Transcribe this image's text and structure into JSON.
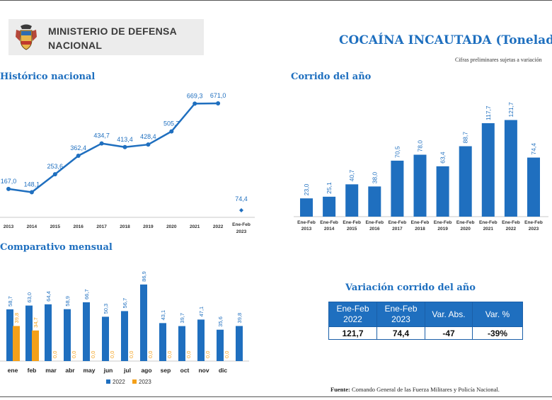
{
  "header": {
    "ministry_line1": "MINISTERIO DE DEFENSA",
    "ministry_line2": "NACIONAL",
    "title": "COCAÍNA INCAUTADA (Toneladas)",
    "subnote": "Cifras preliminares sujetas a variación"
  },
  "chart_data": [
    {
      "type": "line",
      "title": "Histórico nacional",
      "categories": [
        "2013",
        "2014",
        "2015",
        "2016",
        "2017",
        "2018",
        "2019",
        "2020",
        "2021",
        "2022"
      ],
      "values": [
        167.0,
        148.1,
        253.6,
        362.4,
        434.7,
        413.4,
        428.4,
        505.7,
        669.3,
        671.0
      ],
      "labels": [
        "167,0",
        "148,1",
        "253,6",
        "362,4",
        "434,7",
        "413,4",
        "428,4",
        "505,7",
        "669,3",
        "671,0"
      ],
      "extra_point": {
        "category": [
          "Ene-Feb",
          "2023"
        ],
        "value": 74.4,
        "label": "74,4"
      },
      "color": "#1f6fbf"
    },
    {
      "type": "bar",
      "title": "Corrido del año",
      "categories": [
        [
          "Ene-Feb",
          "2013"
        ],
        [
          "Ene-Feb",
          "2014"
        ],
        [
          "Ene-Feb",
          "2015"
        ],
        [
          "Ene-Feb",
          "2016"
        ],
        [
          "Ene-Feb",
          "2017"
        ],
        [
          "Ene-Feb",
          "2018"
        ],
        [
          "Ene-Feb",
          "2019"
        ],
        [
          "Ene-Feb",
          "2020"
        ],
        [
          "Ene-Feb",
          "2021"
        ],
        [
          "Ene-Feb",
          "2022"
        ],
        [
          "Ene-Feb",
          "2023"
        ]
      ],
      "values": [
        23.0,
        25.1,
        40.7,
        38.0,
        70.5,
        78.0,
        63.4,
        88.7,
        117.7,
        121.7,
        74.4
      ],
      "labels": [
        "23,0",
        "25,1",
        "40,7",
        "38,0",
        "70,5",
        "78,0",
        "63,4",
        "88,7",
        "117,7",
        "121,7",
        "74,4"
      ],
      "color": "#1f6fbf"
    },
    {
      "type": "bar",
      "title": "Comparativo mensual",
      "categories": [
        "ene",
        "feb",
        "mar",
        "abr",
        "may",
        "jun",
        "jul",
        "ago",
        "sep",
        "oct",
        "nov",
        "dic"
      ],
      "series": [
        {
          "name": "2022",
          "color": "#1f6fbf",
          "values": [
            58.7,
            63.0,
            64.4,
            58.9,
            66.7,
            50.3,
            56.7,
            86.9,
            43.1,
            39.7,
            47.1,
            35.6
          ],
          "labels": [
            "58,7",
            "63,0",
            "64,4",
            "58,9",
            "66,7",
            "50,3",
            "56,7",
            "86,9",
            "43,1",
            "39,7",
            "47,1",
            "35,6"
          ]
        },
        {
          "name": "2023",
          "color": "#f4a019",
          "values": [
            39.8,
            34.7,
            0,
            0,
            0,
            0,
            0,
            0,
            0,
            0,
            0,
            0
          ],
          "labels": [
            "39,8",
            "34,7",
            "0,0",
            "0,0",
            "0,0",
            "0,0",
            "0,0",
            "0,0",
            "0,0",
            "0,0",
            "0,0",
            "0,0"
          ]
        }
      ],
      "legend": "bottom",
      "extra_label": {
        "category": "dic",
        "label": "39,8"
      }
    }
  ],
  "variation": {
    "title": "Variación corrido del año",
    "headers": [
      [
        "Ene-Feb",
        "2022"
      ],
      [
        "Ene-Feb",
        "2023"
      ],
      [
        "Var. Abs."
      ],
      [
        "Var. %"
      ]
    ],
    "values": [
      "121,7",
      "74,4",
      "-47",
      "-39%"
    ]
  },
  "source": {
    "label": "Fuente:",
    "text": " Comando General de las Fuerza Militares y Policía Nacional."
  }
}
